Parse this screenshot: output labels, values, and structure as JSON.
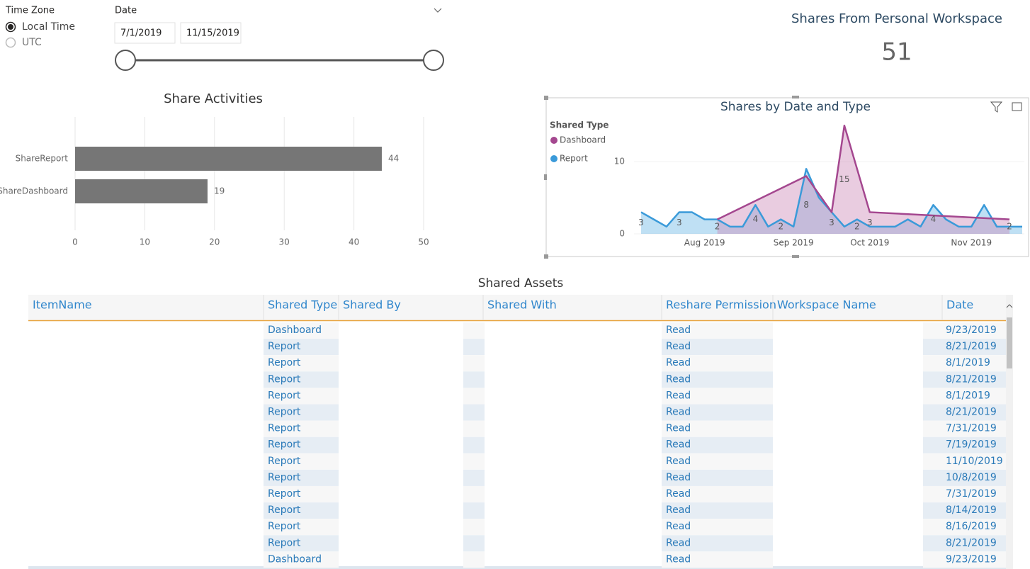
{
  "time_zone_slicer": {
    "title": "Time Zone",
    "options": [
      {
        "label": "Local Time",
        "selected": true
      },
      {
        "label": "UTC",
        "selected": false
      }
    ]
  },
  "date_slicer": {
    "title": "Date",
    "start": "7/1/2019",
    "end": "11/15/2019"
  },
  "card": {
    "title": "Shares From Personal Workspace",
    "value": 51
  },
  "chart_data": [
    {
      "type": "bar",
      "orientation": "horizontal",
      "title": "Share Activities",
      "categories": [
        "ShareReport",
        "ShareDashboard"
      ],
      "values": [
        44,
        19
      ],
      "color": "#767676",
      "xlim": [
        0,
        50
      ],
      "xticks": [
        0,
        10,
        20,
        30,
        40,
        50
      ],
      "grid": true
    },
    {
      "type": "area",
      "title": "Shares by Date and Type",
      "legend_title": "Shared Type",
      "legend": "top-left",
      "span_gaps": true,
      "categories": [
        null,
        null,
        null,
        null,
        null,
        "Aug 2019",
        null,
        null,
        null,
        null,
        null,
        null,
        "Sep 2019",
        null,
        null,
        null,
        null,
        null,
        "Oct 2019",
        null,
        null,
        null,
        null,
        null,
        null,
        null,
        "Nov 2019",
        null,
        null,
        null,
        null
      ],
      "ylim": [
        0,
        16
      ],
      "yticks": [
        0,
        10
      ],
      "series": [
        {
          "name": "Report",
          "color": "#3a9ad9",
          "values": [
            3,
            2,
            1,
            3,
            3,
            2,
            2,
            1,
            1,
            4,
            1,
            2,
            1,
            9,
            5,
            3,
            1,
            2,
            1,
            1,
            1,
            2,
            1,
            4,
            2,
            1,
            1,
            4,
            1,
            1,
            1
          ],
          "value_labels": [
            "3",
            null,
            null,
            "3",
            null,
            null,
            null,
            null,
            null,
            "4",
            null,
            "2",
            null,
            null,
            null,
            null,
            null,
            "2",
            null,
            null,
            null,
            null,
            null,
            "4",
            null,
            null,
            null,
            null,
            null,
            null,
            null
          ]
        },
        {
          "name": "Dashboard",
          "color": "#a4478f",
          "values": [
            null,
            null,
            null,
            null,
            null,
            null,
            2,
            null,
            null,
            null,
            null,
            null,
            null,
            8,
            null,
            3,
            15,
            null,
            3,
            null,
            null,
            null,
            null,
            null,
            null,
            null,
            null,
            null,
            null,
            2,
            null
          ],
          "value_labels": [
            null,
            null,
            null,
            null,
            null,
            null,
            "2",
            null,
            null,
            null,
            null,
            null,
            null,
            "8",
            null,
            "3",
            "15",
            null,
            "3",
            null,
            null,
            null,
            null,
            null,
            null,
            null,
            null,
            null,
            null,
            "2",
            null
          ]
        }
      ]
    }
  ],
  "table": {
    "title": "Shared Assets",
    "columns": [
      "ItemName",
      "Shared Type",
      "Shared By",
      "Shared With",
      "Reshare Permission",
      "Workspace Name",
      "Date"
    ],
    "rows": [
      {
        "shared_type": "Dashboard",
        "reshare_permission": "Read",
        "date": "9/23/2019"
      },
      {
        "shared_type": "Report",
        "reshare_permission": "Read",
        "date": "8/21/2019"
      },
      {
        "shared_type": "Report",
        "reshare_permission": "Read",
        "date": "8/1/2019"
      },
      {
        "shared_type": "Report",
        "reshare_permission": "Read",
        "date": "8/21/2019"
      },
      {
        "shared_type": "Report",
        "reshare_permission": "Read",
        "date": "8/1/2019"
      },
      {
        "shared_type": "Report",
        "reshare_permission": "Read",
        "date": "8/21/2019"
      },
      {
        "shared_type": "Report",
        "reshare_permission": "Read",
        "date": "7/31/2019"
      },
      {
        "shared_type": "Report",
        "reshare_permission": "Read",
        "date": "7/19/2019"
      },
      {
        "shared_type": "Report",
        "reshare_permission": "Read",
        "date": "11/10/2019"
      },
      {
        "shared_type": "Report",
        "reshare_permission": "Read",
        "date": "10/8/2019"
      },
      {
        "shared_type": "Report",
        "reshare_permission": "Read",
        "date": "7/31/2019"
      },
      {
        "shared_type": "Report",
        "reshare_permission": "Read",
        "date": "8/14/2019"
      },
      {
        "shared_type": "Report",
        "reshare_permission": "Read",
        "date": "8/16/2019"
      },
      {
        "shared_type": "Report",
        "reshare_permission": "Read",
        "date": "8/21/2019"
      },
      {
        "shared_type": "Dashboard",
        "reshare_permission": "Read",
        "date": "9/23/2019"
      }
    ]
  }
}
